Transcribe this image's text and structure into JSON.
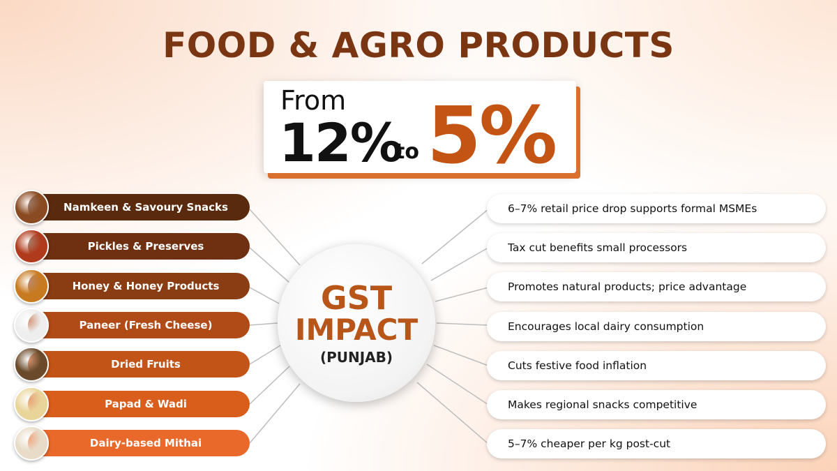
{
  "header": {
    "title": "FOOD & AGRO PRODUCTS"
  },
  "rate": {
    "from": "From",
    "old": "12%",
    "to": "to",
    "new": "5%"
  },
  "center": {
    "line1": "GST",
    "line2": "IMPACT",
    "line3": "(PUNJAB)"
  },
  "products": [
    "Namkeen & Savoury Snacks",
    "Pickles & Preserves",
    "Honey & Honey Products",
    "Paneer (Fresh Cheese)",
    "Dried Fruits",
    "Papad & Wadi",
    "Dairy-based Mithai"
  ],
  "impacts": [
    "6–7% retail price drop supports formal MSMEs",
    "Tax cut benefits small processors",
    "Promotes natural products; price advantage",
    "Encourages local dairy consumption",
    "Cuts festive food inflation",
    "Makes regional snacks competitive",
    "5–7% cheaper per kg post-cut"
  ]
}
